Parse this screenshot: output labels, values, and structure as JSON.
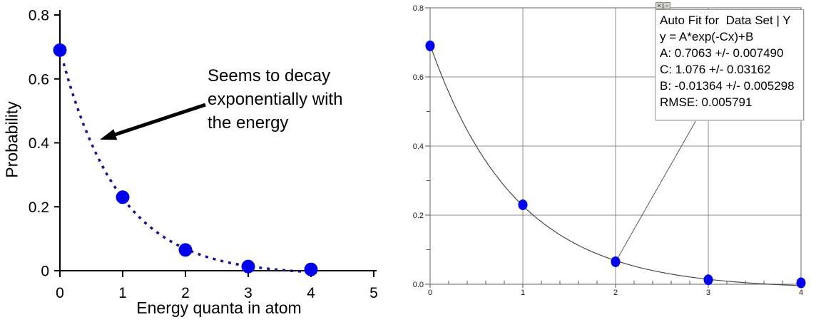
{
  "figure": {
    "background": "#ffffff",
    "description": "Two scatter plots of probability vs energy quanta: hand-annotated chart (left) and Logger Pro style auto-fit chart (right)"
  },
  "chart_data": [
    {
      "type": "scatter",
      "title": "",
      "xlabel": "Energy quanta in atom",
      "ylabel": "Probability",
      "x": [
        0,
        1,
        2,
        3,
        4
      ],
      "y": [
        0.69,
        0.23,
        0.065,
        0.013,
        0.004
      ],
      "xlim": [
        0,
        5
      ],
      "ylim": [
        0,
        0.8
      ],
      "xticks": [
        "0",
        "1",
        "2",
        "3",
        "4",
        "5"
      ],
      "yticks": [
        "0",
        "0.2",
        "0.4",
        "0.6",
        "0.8"
      ],
      "grid": false,
      "marker_color": "#0000ee",
      "trendline": {
        "style": "dashed",
        "color": "#14148c"
      },
      "annotation": {
        "lines": [
          "Seems to decay",
          "exponentially with",
          "the energy"
        ]
      }
    },
    {
      "type": "scatter",
      "title": "",
      "xlabel": "",
      "ylabel": "",
      "x": [
        0,
        1,
        2,
        3,
        4
      ],
      "y": [
        0.69,
        0.23,
        0.065,
        0.013,
        0.004
      ],
      "xlim": [
        0,
        4
      ],
      "ylim": [
        0,
        0.8
      ],
      "xticks": [
        "0",
        "1",
        "2",
        "3",
        "4"
      ],
      "yticks": [
        "0.0",
        "0.2",
        "0.4",
        "0.6",
        "0.8"
      ],
      "x_minor_step": 0.2,
      "y_minor_step": 0.1,
      "grid": true,
      "grid_color": "#8c8c8c",
      "marker_color": "#0000ee",
      "fit_curve_color": "#4a4a4a",
      "fit": {
        "equation": "y = A*exp(-Cx)+B",
        "A": 0.7063,
        "C": 1.076,
        "B": -0.01364
      },
      "fit_box": {
        "lines": [
          "Auto Fit for  Data Set | Y",
          "y = A*exp(-Cx)+B",
          "A: 0.7063 +/- 0.007490",
          "C: 1.076 +/- 0.03162",
          "B: -0.01364 +/- 0.005298",
          "RMSE: 0.005791"
        ],
        "close_glyph": "×",
        "minimize_glyph": "−"
      }
    }
  ]
}
